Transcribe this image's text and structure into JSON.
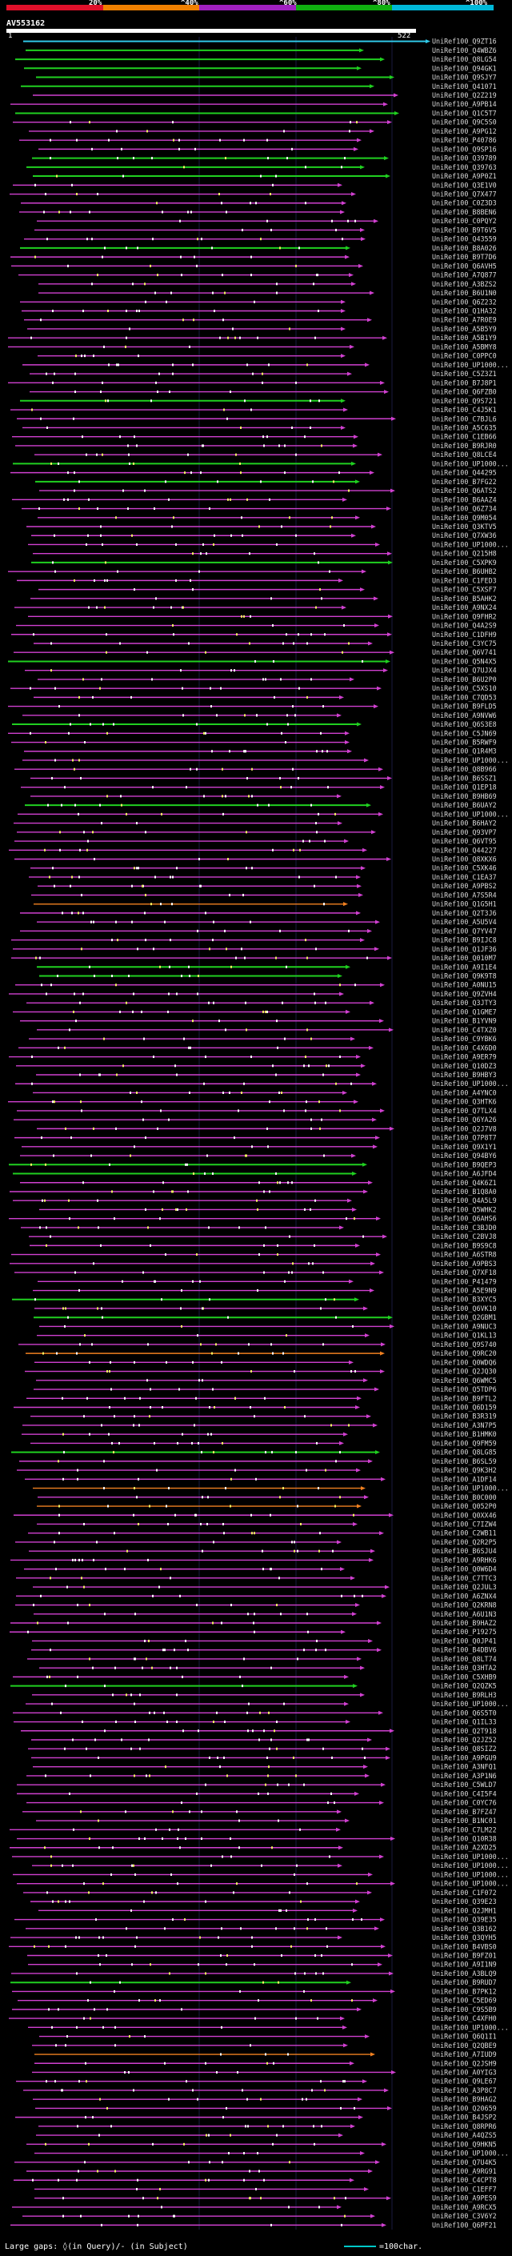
{
  "legend": {
    "ticks": [
      "20%",
      "^40%",
      "^60%",
      "^80%",
      "^100%"
    ],
    "colors": [
      "#e0102a",
      "#f08000",
      "#a020c0",
      "#10b010",
      "#00b8d8"
    ]
  },
  "query": {
    "id": "AV553162",
    "start": "1",
    "end": "522"
  },
  "colors": {
    "magenta": "#d040d0",
    "green": "#20d020",
    "cyan": "#30c8e8",
    "orange": "#f08020",
    "white": "#ffffff",
    "yellow": "#f0f060"
  },
  "hits": [
    {
      "label": "UniRef100_Q9ZT16",
      "color": "cyan"
    },
    {
      "label": "UniRef100_Q4WBZ6",
      "color": "green"
    },
    {
      "label": "UniRef100_Q8LG54",
      "color": "green"
    },
    {
      "label": "UniRef100_Q94GK1",
      "color": "green"
    },
    {
      "label": "UniRef100_Q9SJY7",
      "color": "green"
    },
    {
      "label": "UniRef100_Q41071",
      "color": "green"
    },
    {
      "label": "UniRef100_Q2Z219",
      "color": "magenta"
    },
    {
      "label": "UniRef100_A9PB14",
      "color": "magenta"
    },
    {
      "label": "UniRef100_Q1C5T7",
      "color": "green"
    },
    {
      "label": "UniRef100_Q9C5S0",
      "color": "magenta"
    },
    {
      "label": "UniRef100_A9PG12",
      "color": "magenta"
    },
    {
      "label": "UniRef100_P40786",
      "color": "magenta"
    },
    {
      "label": "UniRef100_Q9SP16",
      "color": "magenta"
    },
    {
      "label": "UniRef100_Q39789",
      "color": "green"
    },
    {
      "label": "UniRef100_Q39763",
      "color": "green"
    },
    {
      "label": "UniRef100_A9P0Z1",
      "color": "green"
    },
    {
      "label": "UniRef100_Q3E1V0",
      "color": "magenta"
    },
    {
      "label": "UniRef100_Q7X477",
      "color": "magenta"
    },
    {
      "label": "UniRef100_C0Z3D3",
      "color": "magenta"
    },
    {
      "label": "UniRef100_B8BEN6",
      "color": "magenta"
    },
    {
      "label": "UniRef100_C0PQY2",
      "color": "magenta"
    },
    {
      "label": "UniRef100_B9T6V5",
      "color": "magenta"
    },
    {
      "label": "UniRef100_Q43559",
      "color": "magenta"
    },
    {
      "label": "UniRef100_B8A026",
      "color": "green"
    },
    {
      "label": "UniRef100_B9T7D6",
      "color": "magenta"
    },
    {
      "label": "UniRef100_Q6AVH5",
      "color": "magenta"
    },
    {
      "label": "UniRef100_A7Q877",
      "color": "magenta"
    },
    {
      "label": "UniRef100_A3BZS2",
      "color": "magenta"
    },
    {
      "label": "UniRef100_B6U1N0",
      "color": "magenta"
    },
    {
      "label": "UniRef100_Q6Z232",
      "color": "magenta"
    },
    {
      "label": "UniRef100_Q1HA32",
      "color": "magenta"
    },
    {
      "label": "UniRef100_A7R0E9",
      "color": "magenta"
    },
    {
      "label": "UniRef100_A5B5Y9",
      "color": "magenta"
    },
    {
      "label": "UniRef100_A5B1Y9",
      "color": "magenta"
    },
    {
      "label": "UniRef100_A5BMY8",
      "color": "magenta"
    },
    {
      "label": "UniRef100_C0PPC0",
      "color": "magenta"
    },
    {
      "label": "UniRef100_UP1000...",
      "color": "magenta"
    },
    {
      "label": "UniRef100_C5Z3Z1",
      "color": "magenta"
    },
    {
      "label": "UniRef100_B7J8P1",
      "color": "magenta"
    },
    {
      "label": "UniRef100_Q6FZB0",
      "color": "magenta"
    },
    {
      "label": "UniRef100_Q9S721",
      "color": "green"
    },
    {
      "label": "UniRef100_C4J5K1",
      "color": "magenta"
    },
    {
      "label": "UniRef100_C7BJL6",
      "color": "magenta"
    },
    {
      "label": "UniRef100_A5C635",
      "color": "magenta"
    },
    {
      "label": "UniRef100_C1EB66",
      "color": "magenta"
    },
    {
      "label": "UniRef100_B9RJR0",
      "color": "magenta"
    },
    {
      "label": "UniRef100_Q8LCE4",
      "color": "magenta"
    },
    {
      "label": "UniRef100_UP1000...",
      "color": "green"
    },
    {
      "label": "UniRef100_Q44295",
      "color": "magenta"
    },
    {
      "label": "UniRef100_B7FG22",
      "color": "green"
    },
    {
      "label": "UniRef100_Q6ATS2",
      "color": "magenta"
    },
    {
      "label": "UniRef100_B6AAZ4",
      "color": "magenta"
    },
    {
      "label": "UniRef100_Q6Z734",
      "color": "magenta"
    },
    {
      "label": "UniRef100_Q9M054",
      "color": "magenta"
    },
    {
      "label": "UniRef100_Q3KTV5",
      "color": "magenta"
    },
    {
      "label": "UniRef100_Q7XW36",
      "color": "magenta"
    },
    {
      "label": "UniRef100_UP1000...",
      "color": "magenta"
    },
    {
      "label": "UniRef100_Q215H8",
      "color": "magenta"
    },
    {
      "label": "UniRef100_C5XPK9",
      "color": "green"
    },
    {
      "label": "UniRef100_B6UHB2",
      "color": "magenta"
    },
    {
      "label": "UniRef100_C1FED3",
      "color": "magenta"
    },
    {
      "label": "UniRef100_C5XSF7",
      "color": "magenta"
    },
    {
      "label": "UniRef100_B5AHK2",
      "color": "magenta"
    },
    {
      "label": "UniRef100_A9NX24",
      "color": "magenta"
    },
    {
      "label": "UniRef100_Q9FHR2",
      "color": "magenta"
    },
    {
      "label": "UniRef100_Q4A2S9",
      "color": "magenta"
    },
    {
      "label": "UniRef100_C1DFH9",
      "color": "magenta"
    },
    {
      "label": "UniRef100_C3YC75",
      "color": "magenta"
    },
    {
      "label": "UniRef100_Q6V741",
      "color": "magenta"
    },
    {
      "label": "UniRef100_Q5N4X5",
      "color": "green"
    },
    {
      "label": "UniRef100_Q7UJX4",
      "color": "magenta"
    },
    {
      "label": "UniRef100_B6U2P0",
      "color": "magenta"
    },
    {
      "label": "UniRef100_C5XS10",
      "color": "magenta"
    },
    {
      "label": "UniRef100_C7QD53",
      "color": "magenta"
    },
    {
      "label": "UniRef100_B9FLD5",
      "color": "magenta"
    },
    {
      "label": "UniRef100_A9NVW6",
      "color": "magenta"
    },
    {
      "label": "UniRef100_Q6S3E8",
      "color": "green"
    },
    {
      "label": "UniRef100_C5JN69",
      "color": "magenta"
    },
    {
      "label": "UniRef100_B5RWF9",
      "color": "magenta"
    },
    {
      "label": "UniRef100_Q1R4M3",
      "color": "magenta"
    },
    {
      "label": "UniRef100_UP1000...",
      "color": "magenta"
    },
    {
      "label": "UniRef100_Q8B966",
      "color": "magenta"
    },
    {
      "label": "UniRef100_B6SSZ1",
      "color": "magenta"
    },
    {
      "label": "UniRef100_Q1EP18",
      "color": "magenta"
    },
    {
      "label": "UniRef100_B9HB69",
      "color": "magenta"
    },
    {
      "label": "UniRef100_B6UAY2",
      "color": "green"
    },
    {
      "label": "UniRef100_UP1000...",
      "color": "magenta"
    },
    {
      "label": "UniRef100_B6HAY2",
      "color": "magenta"
    },
    {
      "label": "UniRef100_Q93VP7",
      "color": "magenta"
    },
    {
      "label": "UniRef100_Q6VT95",
      "color": "magenta"
    },
    {
      "label": "UniRef100_Q44227",
      "color": "magenta"
    },
    {
      "label": "UniRef100_Q8XKX6",
      "color": "magenta"
    },
    {
      "label": "UniRef100_C5XK46",
      "color": "magenta"
    },
    {
      "label": "UniRef100_C1EA37",
      "color": "magenta"
    },
    {
      "label": "UniRef100_A9PBS2",
      "color": "magenta"
    },
    {
      "label": "UniRef100_A7S5R4",
      "color": "magenta"
    },
    {
      "label": "UniRef100_Q1G5H1",
      "color": "orange"
    },
    {
      "label": "UniRef100_Q2T3J6",
      "color": "magenta"
    },
    {
      "label": "UniRef100_A5U5V4",
      "color": "magenta"
    },
    {
      "label": "UniRef100_Q7YV47",
      "color": "magenta"
    },
    {
      "label": "UniRef100_B9IJC8",
      "color": "magenta"
    },
    {
      "label": "UniRef100_Q1JF36",
      "color": "magenta"
    },
    {
      "label": "UniRef100_Q010M7",
      "color": "magenta"
    },
    {
      "label": "UniRef100_A9I1E4",
      "color": "green"
    },
    {
      "label": "UniRef100_Q9K9T8",
      "color": "green"
    },
    {
      "label": "UniRef100_A0NU15",
      "color": "magenta"
    },
    {
      "label": "UniRef100_Q9ZVH4",
      "color": "magenta"
    },
    {
      "label": "UniRef100_Q3JTY3",
      "color": "magenta"
    },
    {
      "label": "UniRef100_Q1GME7",
      "color": "magenta"
    },
    {
      "label": "UniRef100_B1YVN9",
      "color": "magenta"
    },
    {
      "label": "UniRef100_C4TXZ0",
      "color": "magenta"
    },
    {
      "label": "UniRef100_C9YBK6",
      "color": "magenta"
    },
    {
      "label": "UniRef100_C4X6D0",
      "color": "magenta"
    },
    {
      "label": "UniRef100_A9ER79",
      "color": "magenta"
    },
    {
      "label": "UniRef100_Q10DZ3",
      "color": "magenta"
    },
    {
      "label": "UniRef100_B9HBY3",
      "color": "magenta"
    },
    {
      "label": "UniRef100_UP1000...",
      "color": "magenta"
    },
    {
      "label": "UniRef100_A4YNC0",
      "color": "magenta"
    },
    {
      "label": "UniRef100_Q3HTK6",
      "color": "magenta"
    },
    {
      "label": "UniRef100_Q7TLX4",
      "color": "magenta"
    },
    {
      "label": "UniRef100_Q6YA26",
      "color": "magenta"
    },
    {
      "label": "UniRef100_Q2J7V8",
      "color": "magenta"
    },
    {
      "label": "UniRef100_Q7P8T7",
      "color": "magenta"
    },
    {
      "label": "UniRef100_Q9X1Y1",
      "color": "magenta"
    },
    {
      "label": "UniRef100_Q94BY6",
      "color": "magenta"
    },
    {
      "label": "UniRef100_B9QEP3",
      "color": "green"
    },
    {
      "label": "UniRef100_A6JFD4",
      "color": "green"
    },
    {
      "label": "UniRef100_Q4K6Z1",
      "color": "magenta"
    },
    {
      "label": "UniRef100_B1Q8A0",
      "color": "magenta"
    },
    {
      "label": "UniRef100_Q4A5L9",
      "color": "magenta"
    },
    {
      "label": "UniRef100_Q5WHK2",
      "color": "magenta"
    },
    {
      "label": "UniRef100_Q6AHS6",
      "color": "magenta"
    },
    {
      "label": "UniRef100_C3BJD0",
      "color": "magenta"
    },
    {
      "label": "UniRef100_C2BVJ8",
      "color": "magenta"
    },
    {
      "label": "UniRef100_B9S9C8",
      "color": "magenta"
    },
    {
      "label": "UniRef100_A6STR8",
      "color": "magenta"
    },
    {
      "label": "UniRef100_A9PBS3",
      "color": "magenta"
    },
    {
      "label": "UniRef100_Q7XF18",
      "color": "magenta"
    },
    {
      "label": "UniRef100_P41479",
      "color": "magenta"
    },
    {
      "label": "UniRef100_A5E9N9",
      "color": "magenta"
    },
    {
      "label": "UniRef100_B3XYC5",
      "color": "green"
    },
    {
      "label": "UniRef100_Q6VK10",
      "color": "magenta"
    },
    {
      "label": "UniRef100_Q2GBM1",
      "color": "green"
    },
    {
      "label": "UniRef100_A9NUC3",
      "color": "magenta"
    },
    {
      "label": "UniRef100_Q1KL13",
      "color": "magenta"
    },
    {
      "label": "UniRef100_Q9S740",
      "color": "magenta"
    },
    {
      "label": "UniRef100_Q9RC20",
      "color": "orange"
    },
    {
      "label": "UniRef100_Q0WDQ6",
      "color": "magenta"
    },
    {
      "label": "UniRef100_Q2JQ30",
      "color": "magenta"
    },
    {
      "label": "UniRef100_Q6WMC5",
      "color": "magenta"
    },
    {
      "label": "UniRef100_Q5TDP6",
      "color": "magenta"
    },
    {
      "label": "UniRef100_B9FTL2",
      "color": "magenta"
    },
    {
      "label": "UniRef100_Q6D159",
      "color": "magenta"
    },
    {
      "label": "UniRef100_B3R319",
      "color": "magenta"
    },
    {
      "label": "UniRef100_A3N7P5",
      "color": "magenta"
    },
    {
      "label": "UniRef100_B1HMK0",
      "color": "magenta"
    },
    {
      "label": "UniRef100_Q9FM59",
      "color": "magenta"
    },
    {
      "label": "UniRef100_Q8LG85",
      "color": "green"
    },
    {
      "label": "UniRef100_B6SL59",
      "color": "magenta"
    },
    {
      "label": "UniRef100_Q9K3H2",
      "color": "magenta"
    },
    {
      "label": "UniRef100_A1DF14",
      "color": "magenta"
    },
    {
      "label": "UniRef100_UP1000...",
      "color": "orange"
    },
    {
      "label": "UniRef100_B0C000",
      "color": "magenta"
    },
    {
      "label": "UniRef100_Q052P0",
      "color": "orange"
    },
    {
      "label": "UniRef100_Q0XX46",
      "color": "magenta"
    },
    {
      "label": "UniRef100_C7IZW4",
      "color": "magenta"
    },
    {
      "label": "UniRef100_C2WB11",
      "color": "magenta"
    },
    {
      "label": "UniRef100_Q2R2P5",
      "color": "magenta"
    },
    {
      "label": "UniRef100_B6SJU4",
      "color": "magenta"
    },
    {
      "label": "UniRef100_A9RHK6",
      "color": "magenta"
    },
    {
      "label": "UniRef100_Q0W6D4",
      "color": "magenta"
    },
    {
      "label": "UniRef100_C7TTC3",
      "color": "magenta"
    },
    {
      "label": "UniRef100_Q2JUL3",
      "color": "magenta"
    },
    {
      "label": "UniRef100_A6ZNX4",
      "color": "magenta"
    },
    {
      "label": "UniRef100_Q2KRN8",
      "color": "magenta"
    },
    {
      "label": "UniRef100_A6U1N3",
      "color": "magenta"
    },
    {
      "label": "UniRef100_B9HAZ2",
      "color": "magenta"
    },
    {
      "label": "UniRef100_P19275",
      "color": "magenta"
    },
    {
      "label": "UniRef100_Q0JP41",
      "color": "magenta"
    },
    {
      "label": "UniRef100_B4DBV6",
      "color": "magenta"
    },
    {
      "label": "UniRef100_Q8LT74",
      "color": "magenta"
    },
    {
      "label": "UniRef100_Q3HTA2",
      "color": "magenta"
    },
    {
      "label": "UniRef100_C5XHB9",
      "color": "magenta"
    },
    {
      "label": "UniRef100_Q2QZK5",
      "color": "green"
    },
    {
      "label": "UniRef100_B9RLH3",
      "color": "magenta"
    },
    {
      "label": "UniRef100_UP1000...",
      "color": "magenta"
    },
    {
      "label": "UniRef100_Q6S5T0",
      "color": "magenta"
    },
    {
      "label": "UniRef100_Q1IL33",
      "color": "magenta"
    },
    {
      "label": "UniRef100_Q2T918",
      "color": "magenta"
    },
    {
      "label": "UniRef100_Q2JZ52",
      "color": "magenta"
    },
    {
      "label": "UniRef100_Q8SIZ2",
      "color": "magenta"
    },
    {
      "label": "UniRef100_A9PGU9",
      "color": "magenta"
    },
    {
      "label": "UniRef100_A3NFQ1",
      "color": "magenta"
    },
    {
      "label": "UniRef100_A3P1N6",
      "color": "magenta"
    },
    {
      "label": "UniRef100_C5WLD7",
      "color": "magenta"
    },
    {
      "label": "UniRef100_C4I5F4",
      "color": "magenta"
    },
    {
      "label": "UniRef100_C0YC76",
      "color": "magenta"
    },
    {
      "label": "UniRef100_B7FZ47",
      "color": "magenta"
    },
    {
      "label": "UniRef100_B1NC01",
      "color": "magenta"
    },
    {
      "label": "UniRef100_C7LM22",
      "color": "magenta"
    },
    {
      "label": "UniRef100_Q10R38",
      "color": "magenta"
    },
    {
      "label": "UniRef100_A2XD25",
      "color": "magenta"
    },
    {
      "label": "UniRef100_UP1000...",
      "color": "magenta"
    },
    {
      "label": "UniRef100_UP1000...",
      "color": "magenta"
    },
    {
      "label": "UniRef100_UP1000...",
      "color": "magenta"
    },
    {
      "label": "UniRef100_UP1000...",
      "color": "magenta"
    },
    {
      "label": "UniRef100_C1F072",
      "color": "magenta"
    },
    {
      "label": "UniRef100_Q39E23",
      "color": "magenta"
    },
    {
      "label": "UniRef100_Q2JMH1",
      "color": "magenta"
    },
    {
      "label": "UniRef100_Q39E35",
      "color": "magenta"
    },
    {
      "label": "UniRef100_Q3B162",
      "color": "magenta"
    },
    {
      "label": "UniRef100_Q3QYH5",
      "color": "magenta"
    },
    {
      "label": "UniRef100_B4VBS0",
      "color": "magenta"
    },
    {
      "label": "UniRef100_B9FZ01",
      "color": "magenta"
    },
    {
      "label": "UniRef100_A9I1N9",
      "color": "magenta"
    },
    {
      "label": "UniRef100_A3BLQ9",
      "color": "magenta"
    },
    {
      "label": "UniRef100_B9RUD7",
      "color": "green"
    },
    {
      "label": "UniRef100_B7PK12",
      "color": "magenta"
    },
    {
      "label": "UniRef100_C5ED69",
      "color": "magenta"
    },
    {
      "label": "UniRef100_C9S5B9",
      "color": "magenta"
    },
    {
      "label": "UniRef100_C4XFH0",
      "color": "magenta"
    },
    {
      "label": "UniRef100_UP1000...",
      "color": "magenta"
    },
    {
      "label": "UniRef100_Q6Q1I1",
      "color": "magenta"
    },
    {
      "label": "UniRef100_Q2QBE9",
      "color": "magenta"
    },
    {
      "label": "UniRef100_A7IUD9",
      "color": "orange"
    },
    {
      "label": "UniRef100_Q2JSH9",
      "color": "magenta"
    },
    {
      "label": "UniRef100_A0YIG3",
      "color": "magenta"
    },
    {
      "label": "UniRef100_Q9LE67",
      "color": "magenta"
    },
    {
      "label": "UniRef100_A3P8C7",
      "color": "magenta"
    },
    {
      "label": "UniRef100_B9HAG2",
      "color": "magenta"
    },
    {
      "label": "UniRef100_Q20659",
      "color": "magenta"
    },
    {
      "label": "UniRef100_B4JSP2",
      "color": "magenta"
    },
    {
      "label": "UniRef100_Q8RPR6",
      "color": "magenta"
    },
    {
      "label": "UniRef100_A4QZS5",
      "color": "magenta"
    },
    {
      "label": "UniRef100_Q9HKN5",
      "color": "magenta"
    },
    {
      "label": "UniRef100_UP1000...",
      "color": "magenta"
    },
    {
      "label": "UniRef100_Q7U4K5",
      "color": "magenta"
    },
    {
      "label": "UniRef100_A9RG91",
      "color": "magenta"
    },
    {
      "label": "UniRef100_C4CPT8",
      "color": "magenta"
    },
    {
      "label": "UniRef100_C1EFF7",
      "color": "magenta"
    },
    {
      "label": "UniRef100_A9PES9",
      "color": "magenta"
    },
    {
      "label": "UniRef100_A9RCX5",
      "color": "magenta"
    },
    {
      "label": "UniRef100_C3V6Y2",
      "color": "magenta"
    },
    {
      "label": "UniRef100_Q6PF21",
      "color": "magenta"
    }
  ],
  "footer": {
    "text": "Large gaps: ◊(in Query)/- (in Subject)",
    "scale": "=100char."
  }
}
